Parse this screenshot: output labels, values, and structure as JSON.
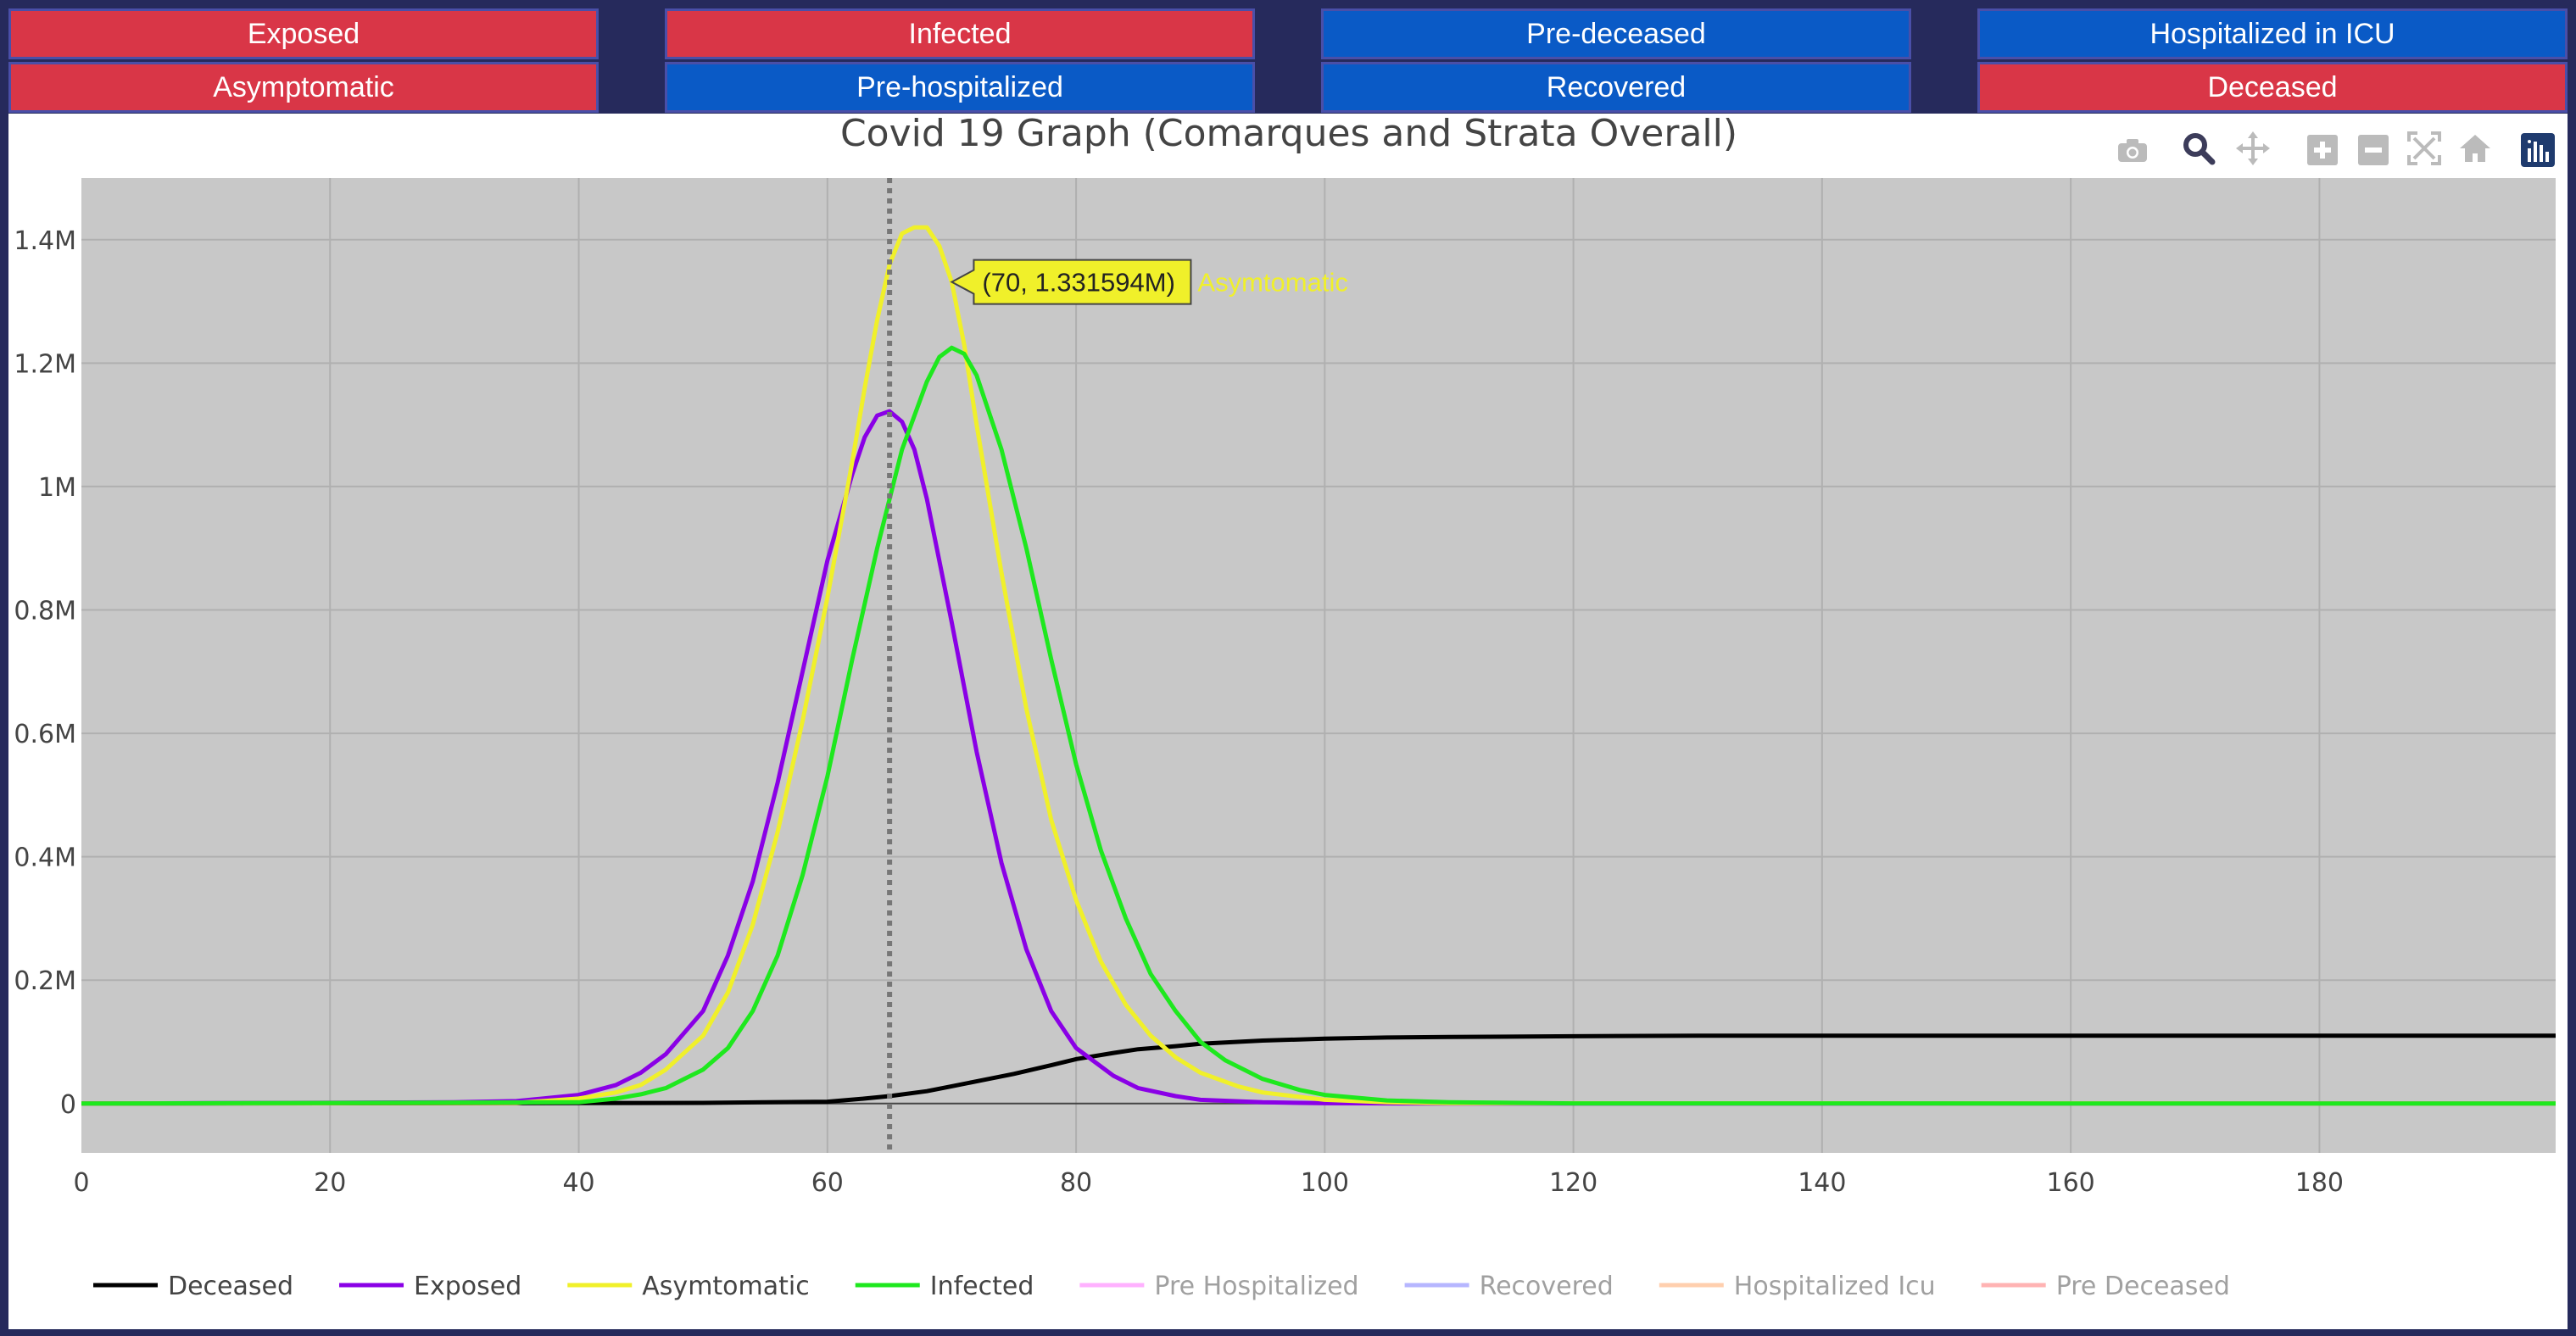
{
  "buttons": {
    "row1": [
      {
        "label": "Exposed",
        "color": "#d93647"
      },
      {
        "label": "Infected",
        "color": "#d93647"
      },
      {
        "label": "Pre-deceased",
        "color": "#0a5ac6"
      },
      {
        "label": "Hospitalized in ICU",
        "color": "#0a5ac6"
      }
    ],
    "row2": [
      {
        "label": "Asymptomatic",
        "color": "#d93647"
      },
      {
        "label": "Pre-hospitalized",
        "color": "#0a5ac6"
      },
      {
        "label": "Recovered",
        "color": "#0a5ac6"
      },
      {
        "label": "Deceased",
        "color": "#d93647"
      }
    ]
  },
  "modebar": [
    "camera-icon",
    "zoom-icon",
    "pan-icon",
    "zoom-in-icon",
    "zoom-out-icon",
    "autoscale-icon",
    "reset-axes-icon",
    "plotly-logo-icon"
  ],
  "hover": {
    "label": "(70, 1.331594M)",
    "series": "Asymtomatic",
    "x": 70,
    "y": 1331594,
    "spike_x": 65
  },
  "chart_data": {
    "type": "line",
    "title": "Covid 19 Graph (Comarques and Strata Overall)",
    "xlabel": "",
    "ylabel": "",
    "xlim": [
      0,
      199
    ],
    "ylim": [
      -80000,
      1500000
    ],
    "xticks": [
      0,
      20,
      40,
      60,
      80,
      100,
      120,
      140,
      160,
      180
    ],
    "xtick_labels": [
      "0",
      "20",
      "40",
      "60",
      "80",
      "100",
      "120",
      "140",
      "160",
      "180"
    ],
    "yticks": [
      0,
      200000,
      400000,
      600000,
      800000,
      1000000,
      1200000,
      1400000
    ],
    "ytick_labels": [
      "0",
      "0.2M",
      "0.4M",
      "0.6M",
      "0.8M",
      "1M",
      "1.2M",
      "1.4M"
    ],
    "grid": true,
    "plot_background": "#c8c8c8",
    "legend_position": "bottom",
    "series": [
      {
        "name": "Deceased",
        "color": "#000000",
        "visible": true,
        "points": [
          [
            0,
            0
          ],
          [
            50,
            1000
          ],
          [
            60,
            3000
          ],
          [
            63,
            8000
          ],
          [
            65,
            12000
          ],
          [
            68,
            20000
          ],
          [
            70,
            28000
          ],
          [
            72,
            36000
          ],
          [
            75,
            48000
          ],
          [
            78,
            62000
          ],
          [
            80,
            72000
          ],
          [
            83,
            82000
          ],
          [
            85,
            88000
          ],
          [
            88,
            93000
          ],
          [
            90,
            97000
          ],
          [
            93,
            100000
          ],
          [
            95,
            102000
          ],
          [
            100,
            105000
          ],
          [
            105,
            107000
          ],
          [
            110,
            108000
          ],
          [
            120,
            109000
          ],
          [
            130,
            110000
          ],
          [
            140,
            110000
          ],
          [
            160,
            110000
          ],
          [
            180,
            110000
          ],
          [
            199,
            110000
          ]
        ]
      },
      {
        "name": "Exposed",
        "color": "#8a00e6",
        "visible": true,
        "points": [
          [
            0,
            0
          ],
          [
            30,
            2000
          ],
          [
            35,
            4000
          ],
          [
            40,
            14000
          ],
          [
            43,
            30000
          ],
          [
            45,
            50000
          ],
          [
            47,
            80000
          ],
          [
            50,
            150000
          ],
          [
            52,
            240000
          ],
          [
            54,
            360000
          ],
          [
            56,
            520000
          ],
          [
            58,
            700000
          ],
          [
            60,
            880000
          ],
          [
            62,
            1020000
          ],
          [
            63,
            1080000
          ],
          [
            64,
            1115000
          ],
          [
            65,
            1122000
          ],
          [
            66,
            1105000
          ],
          [
            67,
            1060000
          ],
          [
            68,
            980000
          ],
          [
            70,
            780000
          ],
          [
            72,
            570000
          ],
          [
            74,
            390000
          ],
          [
            76,
            250000
          ],
          [
            78,
            150000
          ],
          [
            80,
            90000
          ],
          [
            83,
            45000
          ],
          [
            85,
            25000
          ],
          [
            88,
            12000
          ],
          [
            90,
            6000
          ],
          [
            95,
            2000
          ],
          [
            100,
            500
          ],
          [
            110,
            0
          ],
          [
            199,
            0
          ]
        ]
      },
      {
        "name": "Asymtomatic",
        "color": "#f0f02a",
        "visible": true,
        "points": [
          [
            0,
            0
          ],
          [
            35,
            1000
          ],
          [
            40,
            8000
          ],
          [
            43,
            18000
          ],
          [
            45,
            30000
          ],
          [
            47,
            55000
          ],
          [
            50,
            110000
          ],
          [
            52,
            180000
          ],
          [
            54,
            290000
          ],
          [
            56,
            440000
          ],
          [
            58,
            620000
          ],
          [
            60,
            820000
          ],
          [
            62,
            1040000
          ],
          [
            63,
            1160000
          ],
          [
            64,
            1270000
          ],
          [
            65,
            1360000
          ],
          [
            66,
            1410000
          ],
          [
            67,
            1420000
          ],
          [
            68,
            1420000
          ],
          [
            69,
            1390000
          ],
          [
            70,
            1331594
          ],
          [
            71,
            1230000
          ],
          [
            72,
            1100000
          ],
          [
            74,
            860000
          ],
          [
            76,
            640000
          ],
          [
            78,
            460000
          ],
          [
            80,
            330000
          ],
          [
            82,
            230000
          ],
          [
            84,
            160000
          ],
          [
            86,
            110000
          ],
          [
            88,
            75000
          ],
          [
            90,
            50000
          ],
          [
            93,
            28000
          ],
          [
            95,
            18000
          ],
          [
            100,
            6000
          ],
          [
            105,
            2000
          ],
          [
            110,
            500
          ],
          [
            199,
            0
          ]
        ]
      },
      {
        "name": "Infected",
        "color": "#1ee81e",
        "visible": true,
        "points": [
          [
            0,
            0
          ],
          [
            40,
            2000
          ],
          [
            43,
            8000
          ],
          [
            45,
            15000
          ],
          [
            47,
            25000
          ],
          [
            50,
            55000
          ],
          [
            52,
            90000
          ],
          [
            54,
            150000
          ],
          [
            56,
            240000
          ],
          [
            58,
            370000
          ],
          [
            60,
            530000
          ],
          [
            62,
            720000
          ],
          [
            64,
            900000
          ],
          [
            66,
            1060000
          ],
          [
            68,
            1170000
          ],
          [
            69,
            1210000
          ],
          [
            70,
            1225000
          ],
          [
            71,
            1215000
          ],
          [
            72,
            1180000
          ],
          [
            74,
            1060000
          ],
          [
            76,
            900000
          ],
          [
            78,
            720000
          ],
          [
            80,
            550000
          ],
          [
            82,
            410000
          ],
          [
            84,
            300000
          ],
          [
            86,
            210000
          ],
          [
            88,
            150000
          ],
          [
            90,
            100000
          ],
          [
            92,
            70000
          ],
          [
            95,
            40000
          ],
          [
            98,
            22000
          ],
          [
            100,
            14000
          ],
          [
            105,
            5000
          ],
          [
            110,
            2000
          ],
          [
            120,
            300
          ],
          [
            199,
            0
          ]
        ]
      },
      {
        "name": "Pre Hospitalized",
        "color": "#ff66ff",
        "visible": false,
        "points": []
      },
      {
        "name": "Recovered",
        "color": "#7070ff",
        "visible": false,
        "points": []
      },
      {
        "name": "Hospitalized Icu",
        "color": "#ffa060",
        "visible": false,
        "points": []
      },
      {
        "name": "Pre Deceased",
        "color": "#ff6a6a",
        "visible": false,
        "points": []
      }
    ]
  }
}
